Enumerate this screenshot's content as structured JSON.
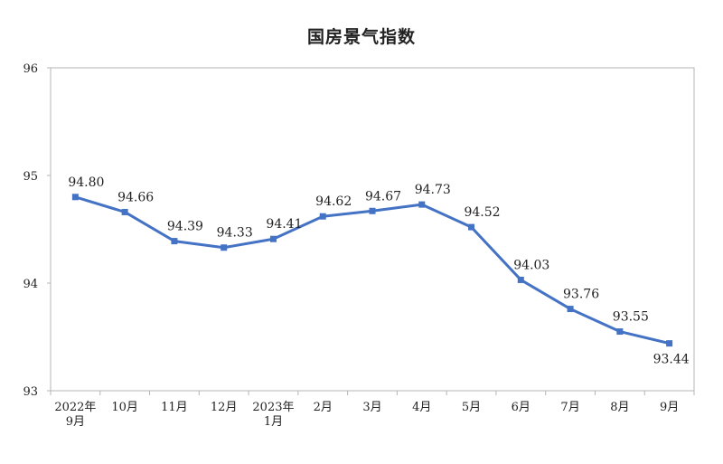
{
  "chart_data": {
    "type": "line",
    "title": "国房景气指数",
    "xlabel": "",
    "ylabel": "",
    "ylim": [
      93,
      96
    ],
    "yticks": [
      93,
      94,
      95,
      96
    ],
    "grid": false,
    "categories": [
      [
        "2022年",
        "9月"
      ],
      [
        "10月"
      ],
      [
        "11月"
      ],
      [
        "12月"
      ],
      [
        "2023年",
        "1月"
      ],
      [
        "2月"
      ],
      [
        "3月"
      ],
      [
        "4月"
      ],
      [
        "5月"
      ],
      [
        "6月"
      ],
      [
        "7月"
      ],
      [
        "8月"
      ],
      [
        "9月"
      ]
    ],
    "series": [
      {
        "values": [
          94.8,
          94.66,
          94.39,
          94.33,
          94.41,
          94.62,
          94.67,
          94.73,
          94.52,
          94.03,
          93.76,
          93.55,
          93.44
        ],
        "labels": [
          "94.80",
          "94.66",
          "94.39",
          "94.33",
          "94.41",
          "94.62",
          "94.67",
          "94.73",
          "94.52",
          "94.03",
          "93.76",
          "93.55",
          "93.44"
        ],
        "color": "#4472C4"
      }
    ]
  }
}
